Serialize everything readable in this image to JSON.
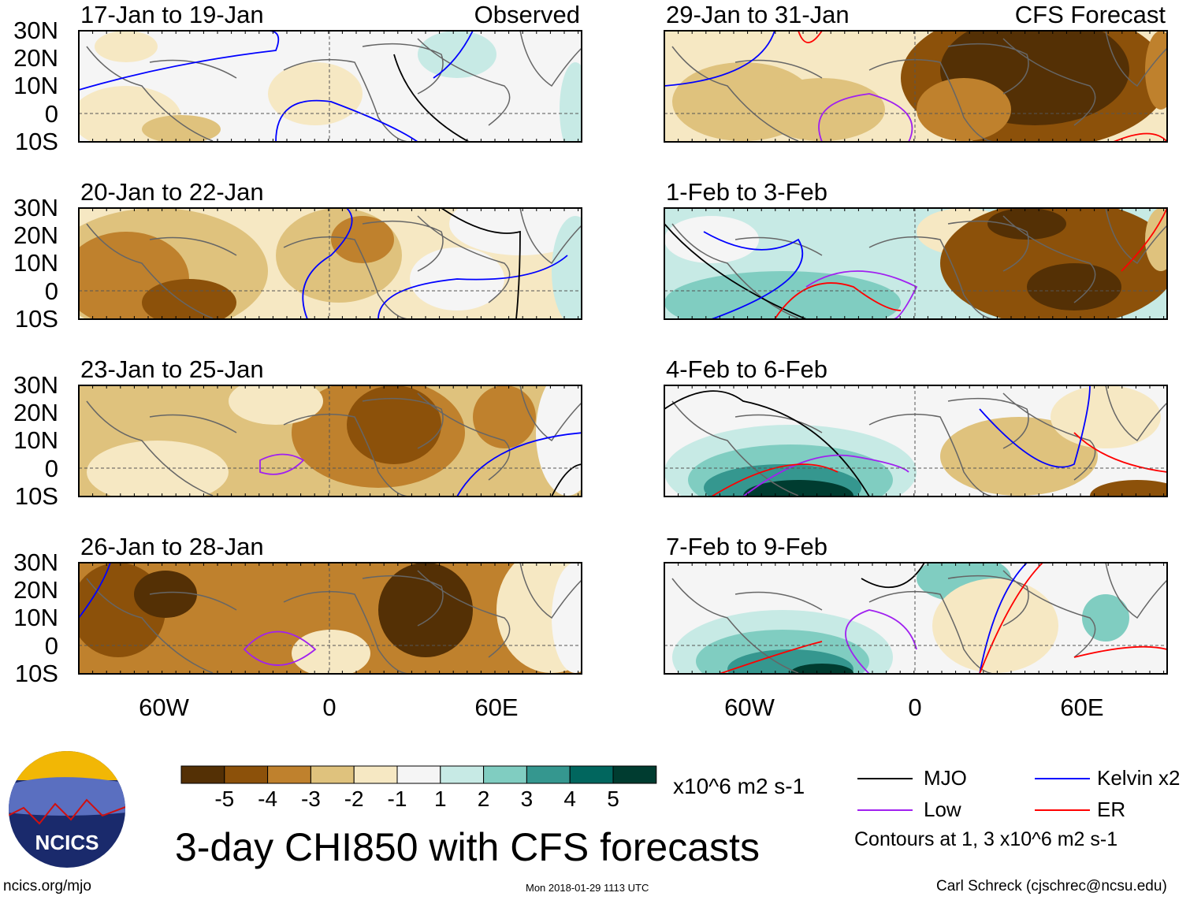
{
  "chart_data": {
    "type": "heatmap",
    "title": "3-day CHI850 with CFS forecasts",
    "variable": "CHI850 anomaly",
    "units": "x10^6 m2 s-1",
    "lat_ticks": [
      "30N",
      "20N",
      "10N",
      "0",
      "10S"
    ],
    "lon_ticks": [
      "60W",
      "0",
      "60E"
    ],
    "lat_range": [
      -10,
      30
    ],
    "lon_range": [
      -90,
      90
    ],
    "panels": [
      {
        "label": "17-Jan to 19-Jan",
        "type": "Observed"
      },
      {
        "label": "20-Jan to 22-Jan"
      },
      {
        "label": "23-Jan to 25-Jan"
      },
      {
        "label": "26-Jan to 28-Jan"
      },
      {
        "label": "29-Jan to 31-Jan",
        "type": "CFS Forecast"
      },
      {
        "label": "1-Feb to 3-Feb"
      },
      {
        "label": "4-Feb to 6-Feb"
      },
      {
        "label": "7-Feb to 9-Feb"
      }
    ],
    "colorbar": {
      "levels": [
        "-5",
        "-4",
        "-3",
        "-2",
        "-1",
        "1",
        "2",
        "3",
        "4",
        "5"
      ],
      "colors": [
        "#543005",
        "#8c510a",
        "#bf812d",
        "#dfc27d",
        "#f6e8c3",
        "#f5f5f5",
        "#c7eae5",
        "#80cdc1",
        "#35978f",
        "#01665e",
        "#003c30"
      ],
      "units": "x10^6 m2 s-1"
    },
    "legend": [
      {
        "label": "MJO",
        "color": "#000000"
      },
      {
        "label": "Kelvin x2",
        "color": "#0000ff"
      },
      {
        "label": "Low",
        "color": "#a020f0"
      },
      {
        "label": "ER",
        "color": "#ff0000"
      }
    ],
    "contour_note": "Contours at 1, 3 x10^6 m2 s-1"
  },
  "footer": {
    "left": "ncics.org/mjo",
    "center": "Mon 2018-01-29 1113 UTC",
    "right": "Carl Schreck (cjschrec@ncsu.edu)",
    "logo": "NCICS"
  }
}
